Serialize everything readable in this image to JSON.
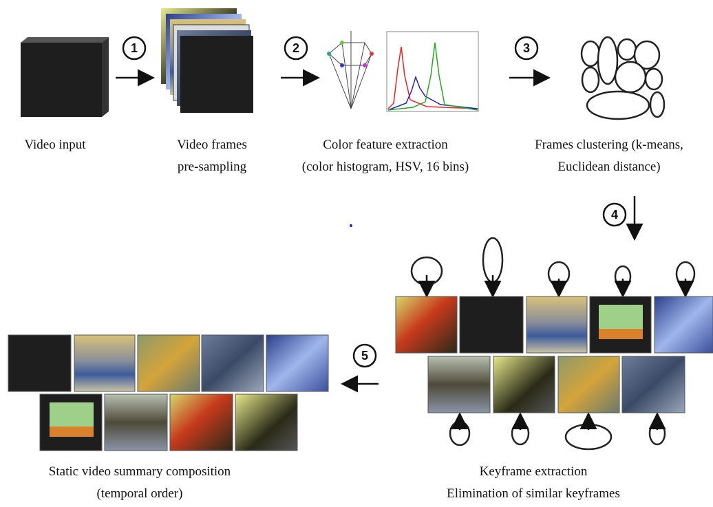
{
  "steps": [
    {
      "number": 1
    },
    {
      "number": 2
    },
    {
      "number": 3
    },
    {
      "number": 4
    },
    {
      "number": 5
    }
  ],
  "nodes": [
    {
      "lines": [
        "Video input"
      ]
    },
    {
      "lines": [
        "Video frames",
        "pre-sampling"
      ]
    },
    {
      "lines": [
        "Color feature extraction",
        "(color histogram, HSV, 16 bins)"
      ]
    },
    {
      "lines": [
        "Frames clustering  (k-means,",
        "Euclidean distance)"
      ]
    },
    {
      "lines": [
        "Keyframe extraction",
        "Elimination of similar keyframes"
      ]
    },
    {
      "lines": [
        "Static video summary composition",
        "(temporal order)"
      ]
    }
  ]
}
